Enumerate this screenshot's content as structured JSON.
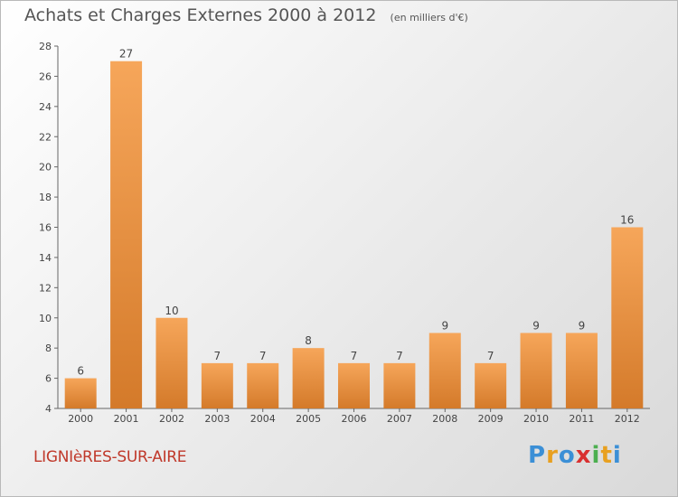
{
  "title": "Achats et Charges Externes 2000 à 2012",
  "subtitle": "(en milliers d'€)",
  "commune": "LIGNIèRES-SUR-AIRE",
  "logo": [
    "P",
    "r",
    "o",
    "x",
    "i",
    "t",
    "i"
  ],
  "logo_colors": [
    "#3b8fd6",
    "#e8a020",
    "#3b8fd6",
    "#d93030",
    "#4caf50",
    "#e8a020",
    "#3b8fd6"
  ],
  "colors": {
    "bar_light": "#f6a65a",
    "bar_dark": "#d47a2a",
    "axis": "#666666",
    "grid": "#e0e0e0"
  },
  "chart_data": {
    "type": "bar",
    "categories": [
      "2000",
      "2001",
      "2002",
      "2003",
      "2004",
      "2005",
      "2006",
      "2007",
      "2008",
      "2009",
      "2010",
      "2011",
      "2012"
    ],
    "values": [
      6,
      27,
      10,
      7,
      7,
      8,
      7,
      7,
      9,
      7,
      9,
      9,
      16
    ],
    "ylim": [
      4,
      28
    ],
    "yticks": [
      4,
      6,
      8,
      10,
      12,
      14,
      16,
      18,
      20,
      22,
      24,
      26,
      28
    ],
    "title": "Achats et Charges Externes 2000 à 2012",
    "xlabel": "",
    "ylabel": "",
    "grid": false,
    "legend": "none"
  }
}
